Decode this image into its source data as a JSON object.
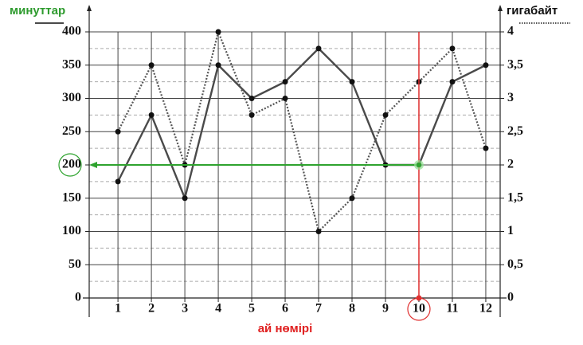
{
  "chart_data": {
    "type": "line",
    "x_label": "ай нөмірі",
    "x": [
      1,
      2,
      3,
      4,
      5,
      6,
      7,
      8,
      9,
      10,
      11,
      12
    ],
    "xlim": [
      0.14,
      12.43
    ],
    "xticks": [
      1,
      2,
      3,
      4,
      5,
      6,
      7,
      8,
      9,
      10,
      11,
      12
    ],
    "ylim": [
      0,
      400
    ],
    "yticks": [
      0,
      50,
      100,
      150,
      200,
      250,
      300,
      350,
      400
    ],
    "yminorticks": [
      25,
      75,
      125,
      175,
      225,
      275,
      325,
      375
    ],
    "y2lim": [
      0,
      4
    ],
    "y2ticks": [
      0,
      {
        "value": 0.5,
        "label": "0,5"
      },
      1,
      {
        "value": 1.5,
        "label": "1,5"
      },
      2,
      {
        "value": 2.5,
        "label": "2,5"
      },
      3,
      {
        "value": 3.5,
        "label": "3,5"
      },
      4
    ],
    "grid": true,
    "series": [
      {
        "name": "минуттар",
        "color": "#4a4a4a",
        "style": "solid",
        "axis": "y",
        "values": [
          175,
          275,
          150,
          350,
          300,
          325,
          375,
          325,
          200,
          200,
          325,
          350
        ]
      },
      {
        "name": "гигабайт",
        "color": "#555555",
        "style": "dotted",
        "axis": "y2",
        "values": [
          2.5,
          3.5,
          2,
          4,
          2.75,
          3,
          1,
          1.5,
          2.75,
          3.25,
          3.75,
          2.25
        ]
      }
    ],
    "highlight": {
      "x": 10,
      "y": 200
    }
  }
}
